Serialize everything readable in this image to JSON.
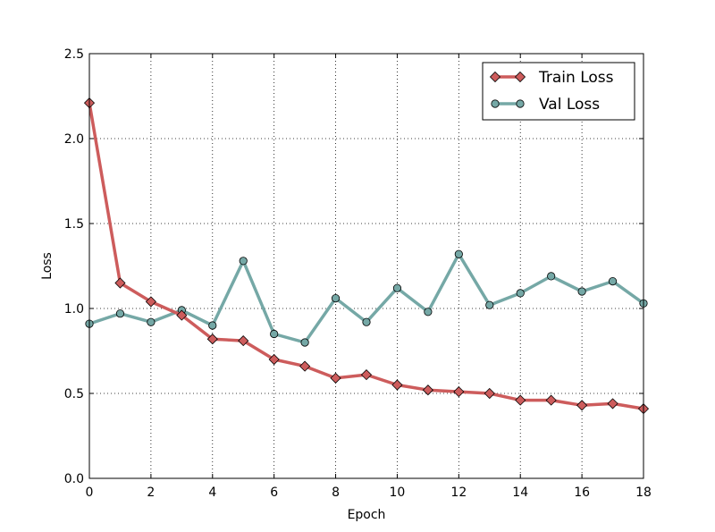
{
  "chart_data": {
    "type": "line",
    "x": [
      0,
      1,
      2,
      3,
      4,
      5,
      6,
      7,
      8,
      9,
      10,
      11,
      12,
      13,
      14,
      15,
      16,
      17,
      18
    ],
    "xlabel": "Epoch",
    "ylabel": "Loss",
    "xlim": [
      0,
      18
    ],
    "ylim": [
      0,
      2.5
    ],
    "xticks": [
      0,
      2,
      4,
      6,
      8,
      10,
      12,
      14,
      16,
      18
    ],
    "yticks": [
      0.0,
      0.5,
      1.0,
      1.5,
      2.0,
      2.5
    ],
    "ytick_labels": [
      "0.0",
      "0.5",
      "1.0",
      "1.5",
      "2.0",
      "2.5"
    ],
    "grid": true,
    "legend_position": "top-right",
    "series": [
      {
        "name": "Train Loss",
        "color": "#cd5c5c",
        "marker": "diamond",
        "values": [
          2.21,
          1.15,
          1.04,
          0.96,
          0.82,
          0.81,
          0.7,
          0.66,
          0.59,
          0.61,
          0.55,
          0.52,
          0.51,
          0.5,
          0.46,
          0.46,
          0.43,
          0.44,
          0.41
        ]
      },
      {
        "name": "Val Loss",
        "color": "#75a8a6",
        "marker": "circle",
        "values": [
          0.91,
          0.97,
          0.92,
          0.99,
          0.9,
          1.28,
          0.85,
          0.8,
          1.06,
          0.92,
          1.12,
          0.98,
          1.32,
          1.02,
          1.09,
          1.19,
          1.1,
          1.16,
          1.03
        ]
      }
    ]
  }
}
